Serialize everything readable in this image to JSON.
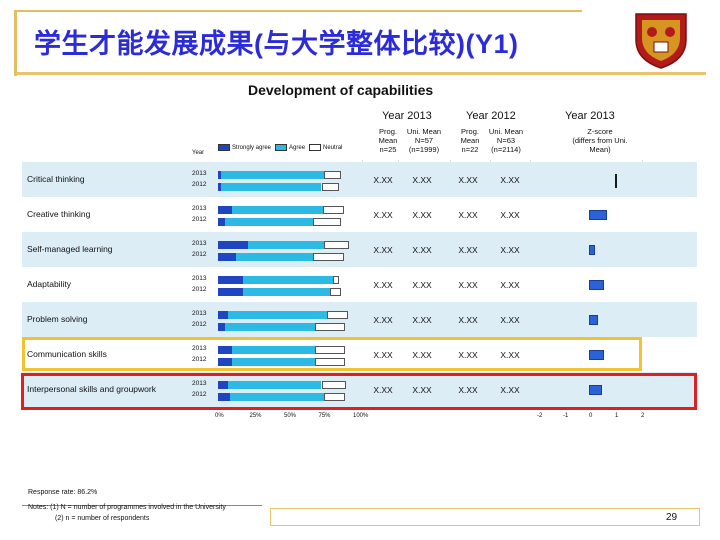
{
  "slide": {
    "title": "学生才能发展成果(与大学整体比较)(Y1)",
    "page_number": "29",
    "accent_color": "#2b2bd9",
    "crest_icon": "university-crest-icon"
  },
  "chart_data": {
    "type": "bar",
    "title": "Development of capabilities",
    "group_headers": [
      "Year 2013",
      "Year 2012",
      "Year 2013"
    ],
    "legend": [
      "Strongly agree",
      "Agree",
      "Neutral"
    ],
    "year_axis_label": "Year",
    "columns": [
      {
        "line1": "Prog.",
        "line2": "Mean",
        "line3": "n=25"
      },
      {
        "line1": "Uni. Mean",
        "line2": "N=57",
        "line3": "(n=1999)"
      },
      {
        "line1": "Prog.",
        "line2": "Mean",
        "line3": "n=22"
      },
      {
        "line1": "Uni. Mean",
        "line2": "N=63",
        "line3": "(n=2114)"
      },
      {
        "line1": "Z-score",
        "line2": "(differs from Uni. Mean)",
        "line3": ""
      }
    ],
    "x_ticks": [
      "0%",
      "25%",
      "50%",
      "75%",
      "100%"
    ],
    "z_ticks": [
      "-2",
      "-1",
      "0",
      "1",
      "2"
    ],
    "zlim": [
      -2,
      2
    ],
    "rows": [
      {
        "label": "Critical thinking",
        "year_a": "2013",
        "year_b": "2012",
        "bars2013": [
          2,
          75,
          12
        ],
        "bars2012": [
          2,
          73,
          13
        ],
        "values": [
          "X.XX",
          "X.XX",
          "X.XX",
          "X.XX"
        ],
        "zscore": 0.05
      },
      {
        "label": "Creative thinking",
        "year_a": "2013",
        "year_b": "2012",
        "bars2013": [
          10,
          66,
          15
        ],
        "bars2012": [
          5,
          64,
          20
        ],
        "values": [
          "X.XX",
          "X.XX",
          "X.XX",
          "X.XX"
        ],
        "zscore": 0.7
      },
      {
        "label": "Self-managed learning",
        "year_a": "2013",
        "year_b": "2012",
        "bars2013": [
          22,
          55,
          18
        ],
        "bars2012": [
          13,
          56,
          22
        ],
        "values": [
          "X.XX",
          "X.XX",
          "X.XX",
          "X.XX"
        ],
        "zscore": 0.25
      },
      {
        "label": "Adaptability",
        "year_a": "2013",
        "year_b": "2012",
        "bars2013": [
          18,
          65,
          5
        ],
        "bars2012": [
          18,
          63,
          8
        ],
        "values": [
          "X.XX",
          "X.XX",
          "X.XX",
          "X.XX"
        ],
        "zscore": 0.6
      },
      {
        "label": "Problem solving",
        "year_a": "2013",
        "year_b": "2012",
        "bars2013": [
          7,
          72,
          15
        ],
        "bars2012": [
          5,
          65,
          22
        ],
        "values": [
          "X.XX",
          "X.XX",
          "X.XX",
          "X.XX"
        ],
        "zscore": 0.35
      },
      {
        "label": "Communication skills",
        "year_a": "2013",
        "year_b": "2012",
        "bars2013": [
          10,
          60,
          22
        ],
        "bars2012": [
          10,
          60,
          22
        ],
        "values": [
          "X.XX",
          "X.XX",
          "X.XX",
          "X.XX"
        ],
        "zscore": 0.6
      },
      {
        "label": "Interpersonal skills and groupwork",
        "year_a": "2013",
        "year_b": "2012",
        "bars2013": [
          7,
          68,
          18
        ],
        "bars2012": [
          9,
          68,
          15
        ],
        "values": [
          "X.XX",
          "X.XX",
          "X.XX",
          "X.XX"
        ],
        "zscore": 0.5
      }
    ],
    "highlights": {
      "gold_row": "Communication skills",
      "red_row": "Interpersonal skills and groupwork"
    }
  },
  "notes": {
    "response_rate": "Response rate: 86.2%",
    "note1": "Notes: (1) N = number of programmes involved in the University",
    "note2": "(2) n = number of respondents"
  },
  "colors": {
    "strongly_agree": "#1f46c0",
    "agree": "#2cb9e4",
    "neutral": "#ffffff",
    "zbar": "#2b62d6",
    "gold": "#f1c232",
    "red": "#e02020"
  }
}
